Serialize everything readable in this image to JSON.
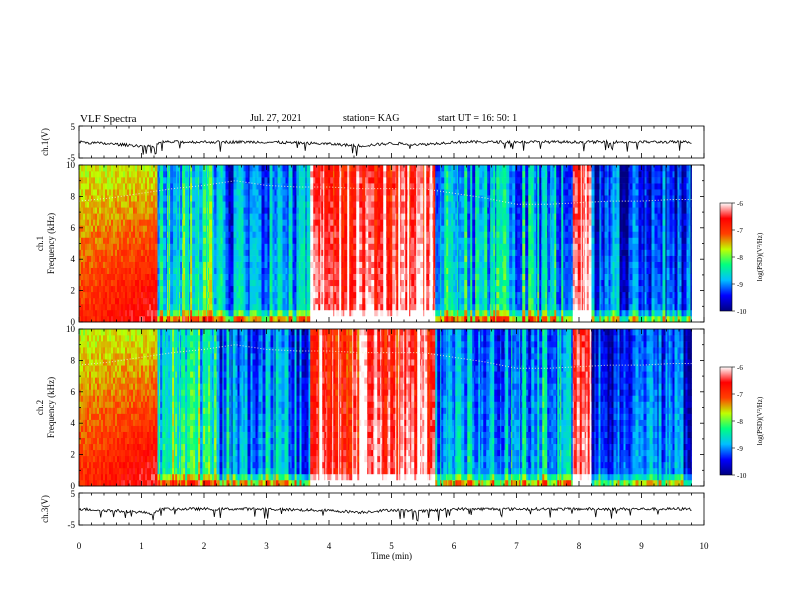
{
  "header": {
    "title": "VLF Spectra",
    "date": "Jul. 27, 2021",
    "station": "station= KAG",
    "start": "start UT =  16: 50: 1"
  },
  "panels": {
    "wave1": {
      "ylabel": "ch.1(V)",
      "ticks": [
        "5",
        "-5"
      ]
    },
    "spec1": {
      "ylabel1": "ch.1",
      "ylabel2": "Frequency (kHz)",
      "ticks": [
        "0",
        "2",
        "4",
        "6",
        "8",
        "10"
      ]
    },
    "spec2": {
      "ylabel1": "ch.2",
      "ylabel2": "Frequency (kHz)",
      "ticks": [
        "0",
        "2",
        "4",
        "6",
        "8",
        "10"
      ]
    },
    "wave2": {
      "ylabel": "ch.3(V)",
      "ticks": [
        "5",
        "-5"
      ]
    }
  },
  "colorbar": {
    "label": "log(PSD)(V²/Hz)",
    "ticks": [
      "-6",
      "-7",
      "-8",
      "-9",
      "-10"
    ],
    "colors": [
      "#000080",
      "#0000ff",
      "#00c0ff",
      "#00ff80",
      "#c0ff00",
      "#ff4000",
      "#ff0000",
      "#ffffff"
    ]
  },
  "chart_data": [
    {
      "type": "line",
      "title": "VLF Spectra",
      "ylabel": "ch.1(V)",
      "xlabel": "Time (min)",
      "xlim": [
        0,
        10
      ],
      "ylim": [
        -5,
        5
      ],
      "x_ticks": [
        "0",
        "1",
        "2",
        "3",
        "4",
        "5",
        "6",
        "7",
        "8",
        "9",
        "10"
      ],
      "series": [
        {
          "x": [
            0,
            0.5,
            1.0,
            1.2,
            1.3,
            2.0,
            3.0,
            4.0,
            4.5,
            5.0,
            5.5,
            6.0,
            7.0,
            8.0,
            9.0,
            9.8
          ],
          "values": [
            0,
            -0.6,
            -1.2,
            -1.6,
            0,
            0,
            0,
            -0.6,
            -1.2,
            -0.4,
            -0.8,
            0,
            0,
            0,
            0,
            0
          ]
        }
      ]
    },
    {
      "type": "heatmap",
      "ylabel": "ch.1 Frequency (kHz)",
      "xlabel": "Time (min)",
      "xlim": [
        0,
        10
      ],
      "ylim": [
        0,
        10
      ],
      "zlabel": "log(PSD)(V²/Hz)",
      "zlim": [
        -10,
        -6
      ],
      "trace": {
        "x": [
          0,
          0.5,
          1.0,
          1.5,
          2.0,
          2.5,
          3.0,
          3.5,
          4.0,
          4.5,
          5.0,
          5.5,
          6.0,
          6.5,
          7.0,
          7.5,
          8.0,
          8.5,
          9.0,
          9.5,
          9.8
        ],
        "y": [
          7.7,
          7.9,
          8.2,
          8.5,
          8.7,
          9.0,
          8.7,
          8.6,
          8.6,
          8.5,
          8.5,
          8.5,
          8.2,
          7.9,
          7.5,
          7.5,
          7.6,
          7.7,
          7.7,
          7.8,
          7.8
        ]
      },
      "segments": [
        {
          "x": [
            0,
            1.25
          ],
          "level": -7.2
        },
        {
          "x": [
            1.25,
            2.2
          ],
          "level": -8.6
        },
        {
          "x": [
            2.2,
            3.7
          ],
          "level": -9.2
        },
        {
          "x": [
            3.7,
            5.7
          ],
          "level": -6.3
        },
        {
          "x": [
            5.7,
            7.9
          ],
          "level": -9.0
        },
        {
          "x": [
            7.9,
            8.2
          ],
          "level": -6.1
        },
        {
          "x": [
            8.2,
            9.8
          ],
          "level": -9.6
        }
      ]
    },
    {
      "type": "heatmap",
      "ylabel": "ch.2 Frequency (kHz)",
      "xlabel": "Time (min)",
      "xlim": [
        0,
        10
      ],
      "ylim": [
        0,
        10
      ],
      "zlabel": "log(PSD)(V²/Hz)",
      "zlim": [
        -10,
        -6
      ],
      "trace": {
        "x": [
          0,
          0.5,
          1.0,
          1.5,
          2.0,
          2.5,
          3.0,
          3.5,
          4.0,
          4.5,
          5.0,
          5.5,
          6.0,
          6.5,
          7.0,
          7.5,
          8.0,
          8.5,
          9.0,
          9.5,
          9.8
        ],
        "y": [
          7.7,
          7.9,
          8.2,
          8.5,
          8.7,
          9.0,
          8.7,
          8.6,
          8.6,
          8.5,
          8.5,
          8.5,
          8.2,
          7.9,
          7.5,
          7.5,
          7.6,
          7.7,
          7.7,
          7.8,
          7.8
        ]
      },
      "segments": [
        {
          "x": [
            0,
            1.25
          ],
          "level": -7.2
        },
        {
          "x": [
            1.25,
            2.2
          ],
          "level": -8.6
        },
        {
          "x": [
            2.2,
            3.7
          ],
          "level": -9.2
        },
        {
          "x": [
            3.7,
            5.7
          ],
          "level": -6.3
        },
        {
          "x": [
            5.7,
            7.9
          ],
          "level": -9.0
        },
        {
          "x": [
            7.9,
            8.2
          ],
          "level": -6.1
        },
        {
          "x": [
            8.2,
            9.8
          ],
          "level": -9.6
        }
      ]
    },
    {
      "type": "line",
      "ylabel": "ch.3(V)",
      "xlabel": "Time (min)",
      "xlim": [
        0,
        10
      ],
      "ylim": [
        -5,
        5
      ],
      "x_ticks": [
        "0",
        "1",
        "2",
        "3",
        "4",
        "5",
        "6",
        "7",
        "8",
        "9",
        "10"
      ],
      "series": [
        {
          "x": [
            0,
            0.5,
            1.0,
            1.2,
            1.3,
            2.0,
            3.0,
            4.0,
            4.5,
            5.0,
            5.5,
            6.0,
            7.0,
            8.0,
            9.0,
            9.8
          ],
          "values": [
            0,
            -0.5,
            -1.0,
            -1.5,
            0,
            0,
            0,
            -0.5,
            -1.0,
            -0.3,
            -0.7,
            0,
            0,
            0,
            0,
            0
          ]
        }
      ]
    }
  ]
}
